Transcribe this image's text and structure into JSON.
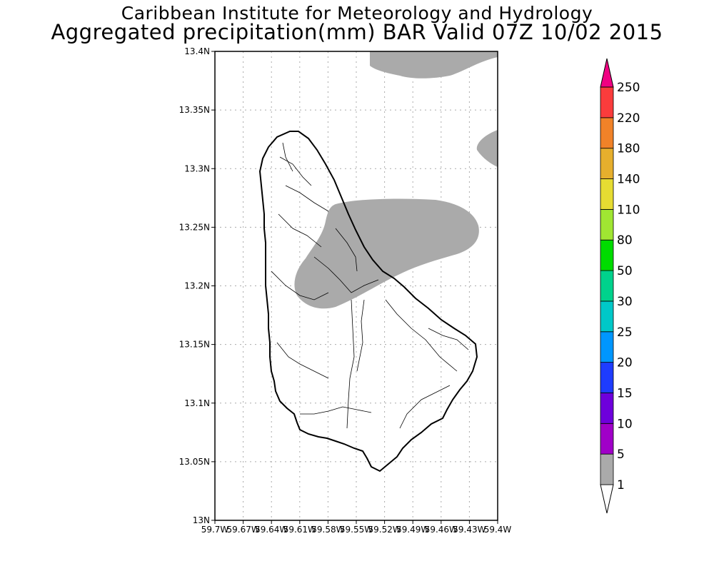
{
  "header": {
    "title_line1": "Caribbean Institute for Meteorology and Hydrology",
    "title_line2": "Aggregated precipitation(mm) BAR Valid 07Z 10/02 2015"
  },
  "map": {
    "x_range": [
      -59.7,
      -59.4
    ],
    "y_range": [
      13.0,
      13.4
    ],
    "x_ticks": [
      {
        "value": -59.7,
        "label": "59.7W"
      },
      {
        "value": -59.67,
        "label": "59.67W"
      },
      {
        "value": -59.64,
        "label": "59.64W"
      },
      {
        "value": -59.61,
        "label": "59.61W"
      },
      {
        "value": -59.58,
        "label": "59.58W"
      },
      {
        "value": -59.55,
        "label": "59.55W"
      },
      {
        "value": -59.52,
        "label": "59.52W"
      },
      {
        "value": -59.49,
        "label": "59.49W"
      },
      {
        "value": -59.46,
        "label": "59.46W"
      },
      {
        "value": -59.43,
        "label": "59.43W"
      },
      {
        "value": -59.4,
        "label": "59.4W"
      }
    ],
    "y_ticks": [
      {
        "value": 13.0,
        "label": "13N"
      },
      {
        "value": 13.05,
        "label": "13.05N"
      },
      {
        "value": 13.1,
        "label": "13.1N"
      },
      {
        "value": 13.15,
        "label": "13.15N"
      },
      {
        "value": 13.2,
        "label": "13.2N"
      },
      {
        "value": 13.25,
        "label": "13.25N"
      },
      {
        "value": 13.3,
        "label": "13.3N"
      },
      {
        "value": 13.35,
        "label": "13.35N"
      },
      {
        "value": 13.4,
        "label": "13.4N"
      }
    ],
    "grid": true,
    "precip_fill_color": "#aaaaaa",
    "precip_category": "1-5 mm"
  },
  "colorbar": {
    "levels": [
      "1",
      "5",
      "10",
      "15",
      "20",
      "25",
      "30",
      "50",
      "80",
      "110",
      "140",
      "180",
      "220",
      "250"
    ],
    "colors": [
      "#aaaaaa",
      "#a000c8",
      "#6e00dc",
      "#1e3cff",
      "#0096ff",
      "#00c8c8",
      "#00d28c",
      "#00dc00",
      "#a0e632",
      "#e6dc32",
      "#e6af2d",
      "#f08228",
      "#fa3c3c",
      "#f00082"
    ],
    "lower_color": "#ffffff",
    "upper_color": "#f00082"
  }
}
